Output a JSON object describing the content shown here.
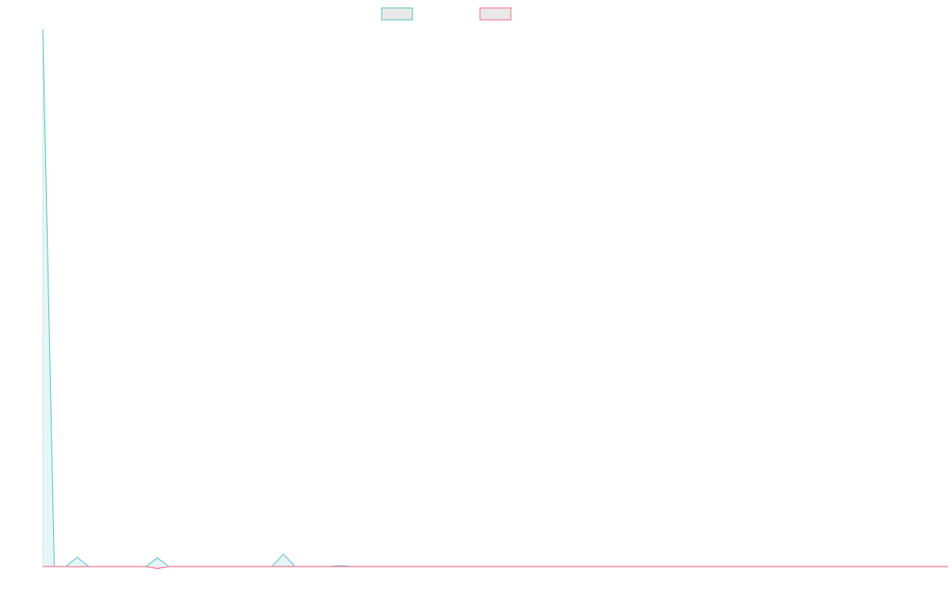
{
  "chart_data": {
    "type": "line",
    "title": "",
    "xlabel": "",
    "ylabel": "",
    "legend_position": "top-center",
    "grid": false,
    "x": [
      0,
      1,
      2,
      3,
      4,
      5,
      6,
      7,
      8,
      9,
      10,
      11,
      12,
      13,
      14,
      15,
      16,
      17,
      18,
      19,
      20,
      21,
      22,
      23,
      24,
      25,
      26,
      27,
      28,
      29,
      30,
      31,
      32,
      33,
      34,
      35,
      36,
      37,
      38,
      39,
      40,
      41,
      42,
      43,
      44,
      45,
      46,
      47,
      48,
      49,
      50,
      51,
      52,
      53,
      54,
      55,
      56,
      57,
      58,
      59,
      60,
      61,
      62,
      63,
      64,
      65,
      66,
      67,
      68,
      69,
      70,
      71,
      72,
      73,
      74,
      75,
      76,
      77,
      78,
      79
    ],
    "xlim": [
      0,
      79
    ],
    "ylim": [
      -5,
      100
    ],
    "series": [
      {
        "color": "#4bc0c0",
        "fill": "rgba(75,192,192,0.15)",
        "values": [
          100,
          0,
          0,
          1.7,
          0,
          0,
          0,
          0,
          0,
          0,
          1.6,
          0,
          0,
          0,
          0,
          0,
          0,
          0,
          0,
          0,
          0,
          2.3,
          0,
          0,
          0,
          0,
          0.15,
          0,
          0,
          0,
          0,
          0,
          0,
          0,
          0,
          0,
          0,
          0,
          0,
          0,
          0,
          0,
          0,
          0,
          0,
          0,
          0,
          0,
          0,
          0,
          0,
          0,
          0,
          0,
          0,
          0,
          0,
          0,
          0,
          0,
          0,
          0,
          0,
          0,
          0,
          0,
          0,
          0,
          0,
          0,
          0,
          0,
          0,
          0,
          0,
          0,
          0,
          0,
          0,
          0
        ]
      },
      {
        "color": "#ff6384",
        "fill": "rgba(255,99,132,0.15)",
        "values": [
          0,
          0,
          0,
          -0.05,
          0,
          0,
          0,
          0,
          0,
          0,
          -0.4,
          0,
          0,
          0,
          0,
          0,
          0,
          0,
          0,
          0,
          0,
          0,
          0,
          0,
          0,
          0,
          0,
          0,
          0,
          0,
          0,
          0,
          0,
          0,
          0,
          0,
          0,
          0,
          0,
          0,
          0,
          0,
          0,
          0,
          0,
          0,
          0,
          0,
          0,
          0,
          0,
          0,
          0,
          0,
          0,
          0,
          0,
          0,
          0,
          0,
          0,
          0,
          0,
          0,
          0,
          0,
          0,
          0,
          0,
          0,
          0,
          0,
          0,
          0,
          0,
          0,
          0,
          0,
          0,
          0
        ]
      }
    ]
  }
}
